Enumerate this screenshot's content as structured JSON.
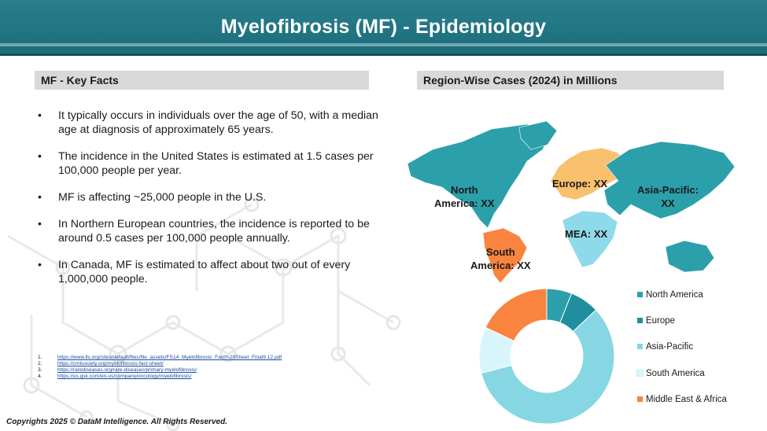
{
  "header": {
    "title": "Myelofibrosis (MF) - Epidemiology"
  },
  "key_facts": {
    "heading": "MF - Key Facts",
    "items": [
      "It typically occurs in individuals over the age of 50, with a median age at diagnosis of approximately 65 years.",
      "The incidence in the United States is estimated at 1.5 cases per 100,000 people per year.",
      "MF is affecting ~25,000 people in the U.S.",
      "In Northern European countries, the incidence is reported to be around 0.5 cases per 100,000 people annually.",
      "In Canada, MF is estimated to affect about two out of every 1,000,000 people."
    ],
    "bullet": "•"
  },
  "references": [
    {
      "num": "1.",
      "url": "https://www.lls.org/sites/default/files/file_assets/FS14_Myelofibrosis_Fact%20Sheet_Final9.12.pdf"
    },
    {
      "num": "2.",
      "url": "https://cmlsociety.org/myelofibrosis-fact-sheet/"
    },
    {
      "num": "3.",
      "url": "https://rarediseases.org/rare-diseases/primary-myelofibrosis/"
    },
    {
      "num": "4.",
      "url": "https://us.gsk.com/en-us/company/oncology/myelofibrosis/"
    }
  ],
  "region_section": {
    "heading": "Region-Wise Cases (2024) in Millions",
    "map_labels": {
      "north_america": "North\nAmerica: XX",
      "europe": "Europe: XX",
      "asia_pacific": "Asia-Pacific:\nXX",
      "mea": "MEA: XX",
      "south_america": "South\nAmerica: XX"
    }
  },
  "colors": {
    "north_america": "#2ba0ab",
    "europe": "#1f8fa0",
    "asia_pacific": "#86d7e3",
    "south_america": "#d8f6fa",
    "mea": "#f8843f",
    "map_europe": "#f9c06e",
    "map_mea": "#8fdaea"
  },
  "chart_data": {
    "type": "pie",
    "subtype": "donut",
    "categories": [
      "North America",
      "Europe",
      "Asia-Pacific",
      "South America",
      "Middle East & Africa"
    ],
    "values": [
      6,
      7,
      58,
      11,
      18
    ],
    "legend_position": "right"
  },
  "copyright": "Copyrights 2025 © DataM Intelligence. All Rights Reserved."
}
